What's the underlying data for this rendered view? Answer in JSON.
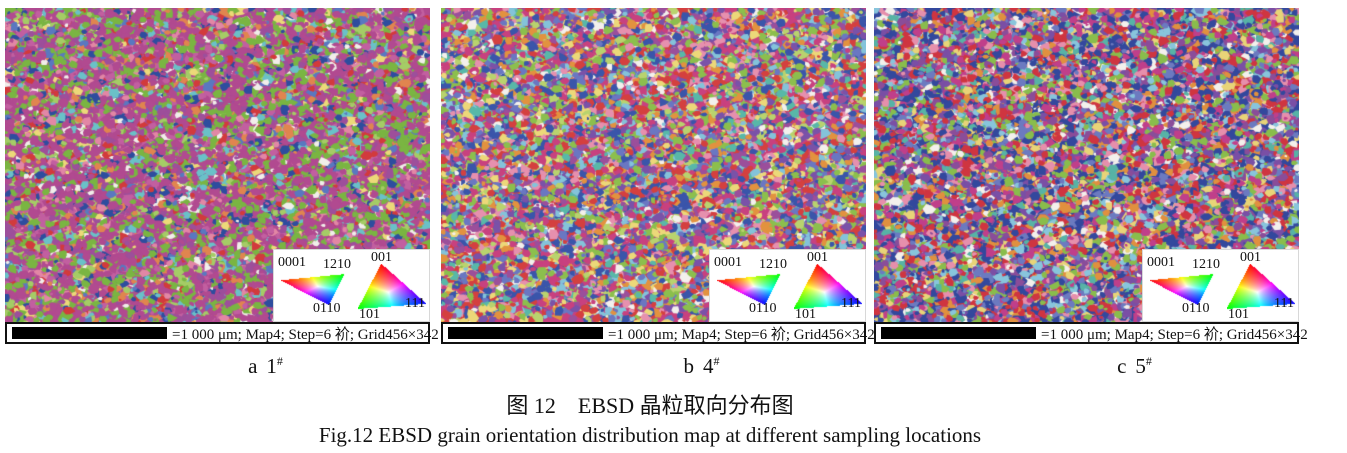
{
  "figure": {
    "caption_zh": "图 12　EBSD 晶粒取向分布图",
    "caption_en": "Fig.12 EBSD grain orientation distribution map at different sampling locations"
  },
  "legend": {
    "hex": {
      "c1": "0001",
      "c2": "1210",
      "c3": "0110"
    },
    "cubic": {
      "c1": "001",
      "c2": "101",
      "c3": "111"
    },
    "corner_colors": [
      "#ff0000",
      "#00cc00",
      "#0000ff"
    ]
  },
  "panels": [
    {
      "label_letter": "a",
      "label_sample": "1",
      "label_sup": "#",
      "scalebar": "=1 000 μm; Map4; Step=6 衸; Grid456×342",
      "palette": [
        {
          "c": "#b14a90",
          "w": 34
        },
        {
          "c": "#9d4f9b",
          "w": 8
        },
        {
          "c": "#c25fa0",
          "w": 6
        },
        {
          "c": "#7ab542",
          "w": 20
        },
        {
          "c": "#a5cc66",
          "w": 4
        },
        {
          "c": "#2e4d9e",
          "w": 5
        },
        {
          "c": "#d23a3c",
          "w": 4
        },
        {
          "c": "#e0854f",
          "w": 4
        },
        {
          "c": "#6ac1c8",
          "w": 4
        },
        {
          "c": "#5a78c0",
          "w": 3
        },
        {
          "c": "#ecd979",
          "w": 2
        },
        {
          "c": "#f1eeea",
          "w": 3
        },
        {
          "c": "#e287a5",
          "w": 3
        }
      ]
    },
    {
      "label_letter": "b",
      "label_sample": "4",
      "label_sup": "#",
      "scalebar": "=1 000 μm; Map4; Step=6 衸; Grid456×342",
      "palette": [
        {
          "c": "#c8417f",
          "w": 12
        },
        {
          "c": "#d4403f",
          "w": 11
        },
        {
          "c": "#3a55aa",
          "w": 11
        },
        {
          "c": "#6a77c2",
          "w": 6
        },
        {
          "c": "#8cbf4d",
          "w": 10
        },
        {
          "c": "#b9d36e",
          "w": 5
        },
        {
          "c": "#e2923f",
          "w": 7
        },
        {
          "c": "#84c3da",
          "w": 6
        },
        {
          "c": "#7a52a8",
          "w": 7
        },
        {
          "c": "#e690ae",
          "w": 6
        },
        {
          "c": "#ecd879",
          "w": 5
        },
        {
          "c": "#f3f0ec",
          "w": 4
        },
        {
          "c": "#58b8a8",
          "w": 4
        },
        {
          "c": "#9b4f9b",
          "w": 6
        }
      ]
    },
    {
      "label_letter": "c",
      "label_sample": "5",
      "label_sup": "#",
      "scalebar": "=1 000 μm; Map4; Step=6 衸; Grid456×342",
      "palette": [
        {
          "c": "#33489d",
          "w": 15
        },
        {
          "c": "#cf3540",
          "w": 13
        },
        {
          "c": "#c03f8a",
          "w": 10
        },
        {
          "c": "#89bd4c",
          "w": 9
        },
        {
          "c": "#6c7ac0",
          "w": 7
        },
        {
          "c": "#e0903f",
          "w": 7
        },
        {
          "c": "#88c5dc",
          "w": 6
        },
        {
          "c": "#7a4fa5",
          "w": 7
        },
        {
          "c": "#e68fac",
          "w": 6
        },
        {
          "c": "#e8d478",
          "w": 5
        },
        {
          "c": "#f3f0ec",
          "w": 4
        },
        {
          "c": "#57b3a6",
          "w": 5
        },
        {
          "c": "#8a4d99",
          "w": 6
        }
      ]
    }
  ]
}
